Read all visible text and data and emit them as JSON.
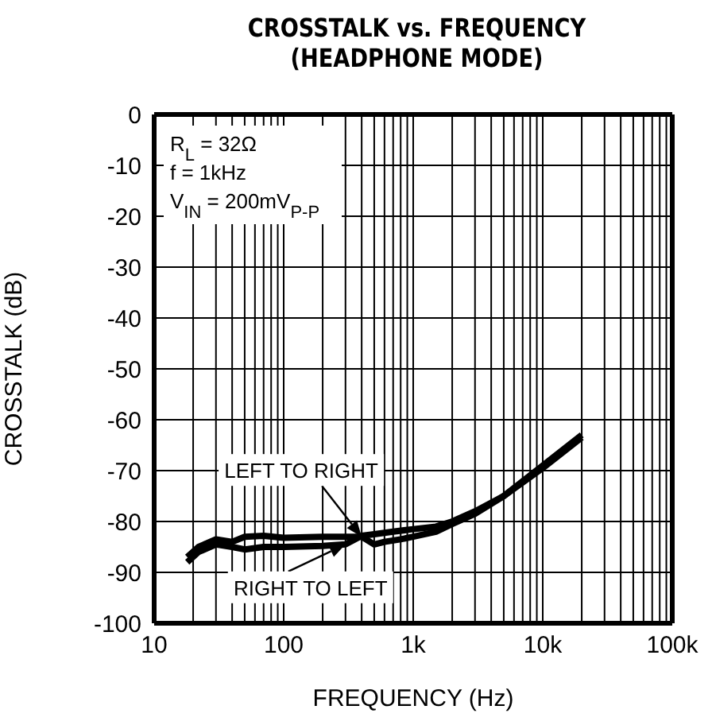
{
  "chart_data": {
    "type": "line",
    "title": "CROSSTALK vs. FREQUENCY",
    "subtitle": "(HEADPHONE MODE)",
    "xlabel": "FREQUENCY (Hz)",
    "ylabel": "CROSSTALK (dB)",
    "log": "x",
    "grid": true,
    "legend": false,
    "marker": "none",
    "line_style": "solid",
    "xlim": [
      10,
      100000
    ],
    "ylim": [
      -100,
      0
    ],
    "xticks": [
      10,
      {
        "value": 20,
        "label": null
      },
      {
        "value": 30,
        "label": null
      },
      {
        "value": 40,
        "label": null
      },
      {
        "value": 50,
        "label": null
      },
      {
        "value": 60,
        "label": null
      },
      {
        "value": 70,
        "label": null
      },
      {
        "value": 80,
        "label": null
      },
      {
        "value": 90,
        "label": null
      },
      100,
      {
        "value": 200,
        "label": null
      },
      {
        "value": 300,
        "label": null
      },
      {
        "value": 400,
        "label": null
      },
      {
        "value": 500,
        "label": null
      },
      {
        "value": 600,
        "label": null
      },
      {
        "value": 700,
        "label": null
      },
      {
        "value": 800,
        "label": null
      },
      {
        "value": 900,
        "label": null
      },
      {
        "value": 1000,
        "label": "1k"
      },
      {
        "value": 2000,
        "label": null
      },
      {
        "value": 3000,
        "label": null
      },
      {
        "value": 4000,
        "label": null
      },
      {
        "value": 5000,
        "label": null
      },
      {
        "value": 6000,
        "label": null
      },
      {
        "value": 7000,
        "label": null
      },
      {
        "value": 8000,
        "label": null
      },
      {
        "value": 9000,
        "label": null
      },
      {
        "value": 10000,
        "label": "10k"
      },
      {
        "value": 20000,
        "label": null
      },
      {
        "value": 30000,
        "label": null
      },
      {
        "value": 40000,
        "label": null
      },
      {
        "value": 50000,
        "label": null
      },
      {
        "value": 60000,
        "label": null
      },
      {
        "value": 70000,
        "label": null
      },
      {
        "value": 80000,
        "label": null
      },
      {
        "value": 90000,
        "label": null
      },
      {
        "value": 100000,
        "label": "100k"
      }
    ],
    "yticks": [
      0,
      -10,
      -20,
      -30,
      -40,
      -50,
      -60,
      -70,
      -80,
      -90,
      -100
    ],
    "annotations": [
      "R$_{L}$ = 32Ω",
      "f = 1kHz",
      "V$_{IN}$ = 200mV$_{P-P}$",
      {
        "text": "LEFT TO RIGHT",
        "x": 400,
        "y": -83
      },
      {
        "text": "RIGHT TO LEFT",
        "x": 300,
        "y": -84.5
      }
    ],
    "series": [
      {
        "color": "#000000",
        "x": [
          18,
          22,
          30,
          40,
          50,
          70,
          100,
          200,
          400,
          500,
          600,
          800,
          1000,
          1500,
          2000,
          3000,
          5000,
          10000,
          20000
        ],
        "values": [
          -87,
          -85,
          -83.5,
          -84,
          -83,
          -82.8,
          -83.2,
          -83,
          -83,
          -84.5,
          -84,
          -83.5,
          -83,
          -82,
          -80.5,
          -78.5,
          -75,
          -69,
          -63
        ]
      },
      {
        "color": "#000000",
        "x": [
          18,
          22,
          30,
          40,
          50,
          70,
          100,
          200,
          300,
          400,
          500,
          700,
          1000,
          1500,
          2000,
          3000,
          5000,
          10000,
          20000
        ],
        "values": [
          -88,
          -86,
          -84.5,
          -85,
          -85.5,
          -85,
          -85,
          -84.8,
          -84.5,
          -82.8,
          -82.5,
          -82,
          -81.5,
          -81,
          -80,
          -78,
          -75,
          -69.5,
          -63.5
        ]
      }
    ]
  }
}
